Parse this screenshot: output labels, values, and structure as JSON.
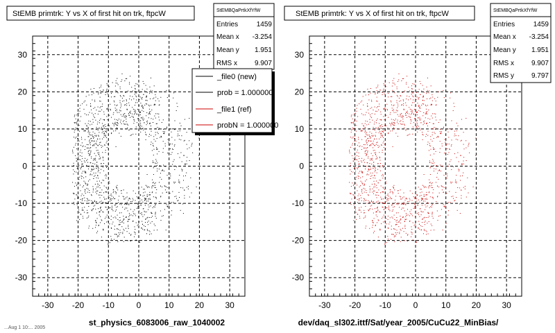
{
  "chart_data": [
    {
      "type": "scatter",
      "title": "StEMB primtrk: Y vs X of first hit on trk, ftpcW",
      "xlabel": "st_physics_6083006_raw_1040002",
      "ylabel": "",
      "xlim": [
        -35,
        35
      ],
      "ylim": [
        -35,
        35
      ],
      "xticks": [
        -30,
        -20,
        -10,
        0,
        10,
        20,
        30
      ],
      "yticks": [
        -30,
        -20,
        -10,
        0,
        10,
        20,
        30
      ],
      "grid": true,
      "stats": {
        "header": "StEMBQaPrtkXfYfW",
        "rows": [
          {
            "label": "Entries",
            "value": "1459"
          },
          {
            "label": "Mean x",
            "value": "-3.254"
          },
          {
            "label": "Mean y",
            "value": "1.951"
          },
          {
            "label": "RMS x",
            "value": "9.907"
          }
        ]
      },
      "legend": {
        "placement": "top-right",
        "entries": [
          {
            "label": "_file0 (new)",
            "color": "#000000"
          },
          {
            "label": "prob = 1.000000",
            "color": "#000000"
          },
          {
            "label": "_file1 (ref)",
            "color": "#cc0000"
          },
          {
            "label": "probN = 1.000000",
            "color": "#cc0000"
          }
        ]
      },
      "series": [
        {
          "color": "#000000",
          "n_points": 1459
        }
      ]
    },
    {
      "type": "scatter",
      "title": "StEMB primtrk: Y vs X of first hit on trk, ftpcW",
      "xlabel": "dev/daq_sl302.ittf/Sat/year_2005/CuCu22_MinBias/",
      "ylabel": "",
      "xlim": [
        -35,
        35
      ],
      "ylim": [
        -35,
        35
      ],
      "xticks": [
        -30,
        -20,
        -10,
        0,
        10,
        20,
        30
      ],
      "yticks": [
        -30,
        -20,
        -10,
        0,
        10,
        20,
        30
      ],
      "grid": true,
      "stats": {
        "header": "StEMBQaPrtkXfYfW",
        "rows": [
          {
            "label": "Entries",
            "value": "1459"
          },
          {
            "label": "Mean x",
            "value": "-3.254"
          },
          {
            "label": "Mean y",
            "value": "1.951"
          },
          {
            "label": "RMS x",
            "value": "9.907"
          },
          {
            "label": "RMS y",
            "value": "9.797"
          }
        ]
      },
      "series": [
        {
          "color": "#cc0000",
          "n_points": 1459
        }
      ]
    }
  ],
  "footer_date": "...Aug 1 10:... 2005"
}
